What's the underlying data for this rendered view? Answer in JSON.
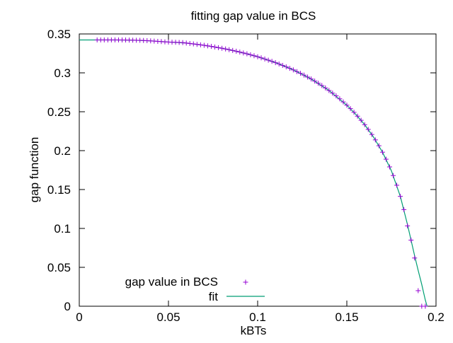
{
  "chart_data": {
    "type": "scatter",
    "title": "fitting gap value in BCS",
    "xlabel": "kBTs",
    "ylabel": "gap function",
    "xlim": [
      0,
      0.2
    ],
    "ylim": [
      0,
      0.35
    ],
    "xticks": [
      0,
      0.05,
      0.1,
      0.15,
      0.2
    ],
    "xtick_labels": [
      "0",
      "0.05",
      "0.1",
      "0.15",
      "0.2"
    ],
    "yticks": [
      0,
      0.05,
      0.1,
      0.15,
      0.2,
      0.25,
      0.3,
      0.35
    ],
    "ytick_labels": [
      "0",
      "0.05",
      "0.1",
      "0.15",
      "0.2",
      "0.25",
      "0.3",
      "0.35"
    ],
    "grid": false,
    "legend_position": "bottom-left",
    "series": [
      {
        "name": "gap value in BCS",
        "kind": "points",
        "marker": "plus",
        "color": "#9400d3",
        "x": [
          0.01,
          0.012,
          0.014,
          0.016,
          0.018,
          0.02,
          0.022,
          0.024,
          0.026,
          0.028,
          0.03,
          0.032,
          0.034,
          0.036,
          0.038,
          0.04,
          0.042,
          0.044,
          0.046,
          0.048,
          0.05,
          0.052,
          0.054,
          0.056,
          0.058,
          0.06,
          0.062,
          0.064,
          0.066,
          0.068,
          0.07,
          0.072,
          0.074,
          0.076,
          0.078,
          0.08,
          0.082,
          0.084,
          0.086,
          0.088,
          0.09,
          0.092,
          0.094,
          0.096,
          0.098,
          0.1,
          0.102,
          0.104,
          0.106,
          0.108,
          0.11,
          0.112,
          0.114,
          0.116,
          0.118,
          0.12,
          0.122,
          0.124,
          0.126,
          0.128,
          0.13,
          0.132,
          0.134,
          0.136,
          0.138,
          0.14,
          0.142,
          0.144,
          0.146,
          0.148,
          0.15,
          0.152,
          0.154,
          0.156,
          0.158,
          0.16,
          0.162,
          0.164,
          0.166,
          0.168,
          0.17,
          0.172,
          0.174,
          0.176,
          0.178,
          0.18,
          0.182,
          0.184,
          0.186,
          0.188,
          0.19,
          0.192,
          0.194
        ],
        "y": [
          0.3423,
          0.3423,
          0.3423,
          0.3423,
          0.3423,
          0.3423,
          0.3423,
          0.3423,
          0.3422,
          0.3421,
          0.342,
          0.3419,
          0.3418,
          0.3416,
          0.3414,
          0.3411,
          0.3408,
          0.3405,
          0.3402,
          0.3398,
          0.3396,
          0.3394,
          0.3393,
          0.3391,
          0.3389,
          0.3383,
          0.3377,
          0.3372,
          0.3366,
          0.336,
          0.3354,
          0.3347,
          0.334,
          0.3332,
          0.3324,
          0.3316,
          0.3307,
          0.3298,
          0.3288,
          0.3278,
          0.3267,
          0.3256,
          0.3245,
          0.3232,
          0.322,
          0.3207,
          0.3193,
          0.3178,
          0.3163,
          0.3148,
          0.3131,
          0.3114,
          0.3096,
          0.3077,
          0.3058,
          0.3038,
          0.3016,
          0.2994,
          0.2971,
          0.2946,
          0.2921,
          0.2894,
          0.2866,
          0.2837,
          0.2806,
          0.2773,
          0.2739,
          0.2704,
          0.2666,
          0.2626,
          0.2584,
          0.254,
          0.2493,
          0.2443,
          0.239,
          0.2334,
          0.2273,
          0.2208,
          0.2138,
          0.2063,
          0.198,
          0.189,
          0.1791,
          0.168,
          0.1555,
          0.1412,
          0.1242,
          0.1033,
          0.085,
          0.062,
          0.02,
          0.0,
          0.0
        ]
      },
      {
        "name": "fit",
        "kind": "line",
        "color": "#009e73",
        "x": [
          0.0,
          0.01,
          0.02,
          0.03,
          0.04,
          0.05,
          0.06,
          0.07,
          0.08,
          0.09,
          0.1,
          0.11,
          0.12,
          0.13,
          0.14,
          0.15,
          0.155,
          0.16,
          0.165,
          0.17,
          0.175,
          0.18,
          0.184,
          0.188,
          0.19,
          0.192,
          0.193,
          0.194,
          0.195
        ],
        "y": [
          0.3423,
          0.3423,
          0.3423,
          0.342,
          0.3411,
          0.3396,
          0.3383,
          0.3354,
          0.3316,
          0.3267,
          0.3207,
          0.3131,
          0.3038,
          0.2921,
          0.2773,
          0.2584,
          0.2467,
          0.2334,
          0.2173,
          0.198,
          0.174,
          0.1412,
          0.105,
          0.065,
          0.046,
          0.028,
          0.018,
          0.008,
          0.0
        ]
      }
    ]
  }
}
